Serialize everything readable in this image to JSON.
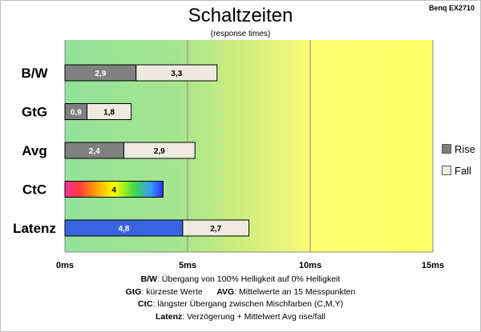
{
  "brand": "Benq EX2710",
  "chart_data": {
    "type": "bar",
    "orientation": "horizontal",
    "stacked": true,
    "title": "Schaltzeiten",
    "subtitle": "(response times)",
    "categories": [
      "B/W",
      "GtG",
      "Avg",
      "CtC",
      "Latenz"
    ],
    "series": [
      {
        "name": "Rise",
        "values": [
          2.9,
          0.9,
          2.4,
          4,
          4.8
        ],
        "labels": [
          "2,9",
          "0,9",
          "2,4",
          "4",
          "4,8"
        ]
      },
      {
        "name": "Fall",
        "values": [
          3.3,
          1.8,
          2.9,
          null,
          2.7
        ],
        "labels": [
          "3,3",
          "1,8",
          "2,9",
          "",
          "2,7"
        ]
      }
    ],
    "xlim": [
      0,
      15
    ],
    "xticks": [
      0,
      5,
      10,
      15
    ],
    "xtick_labels": [
      "0ms",
      "5ms",
      "10ms",
      "15ms"
    ],
    "grid": "vertical",
    "legend_position": "right",
    "colors": {
      "rise": "#808080",
      "fall": "#eeeae0",
      "latenz_rise": "#3a63e0",
      "zone_green": "#92e29a",
      "zone_lime": "#c8ee80",
      "zone_yellow": "#ffff70"
    }
  },
  "notes": [
    {
      "key": "B/W",
      "text": ":  Übergang von 100% Helligkeit auf 0% Helligkeit"
    },
    {
      "key": "GtG",
      "text": ": kürzeste  Werte",
      "key2": "AVG",
      "text2": ": Mittelwerte  an 15 Messpunkten"
    },
    {
      "key": "CtC",
      "text": ": längster Übergang  zwischen Mischfarben (C,M,Y)"
    },
    {
      "key": "Latenz",
      "text": ": Verzögerung  + Mittelwert Avg rise/fall"
    }
  ]
}
